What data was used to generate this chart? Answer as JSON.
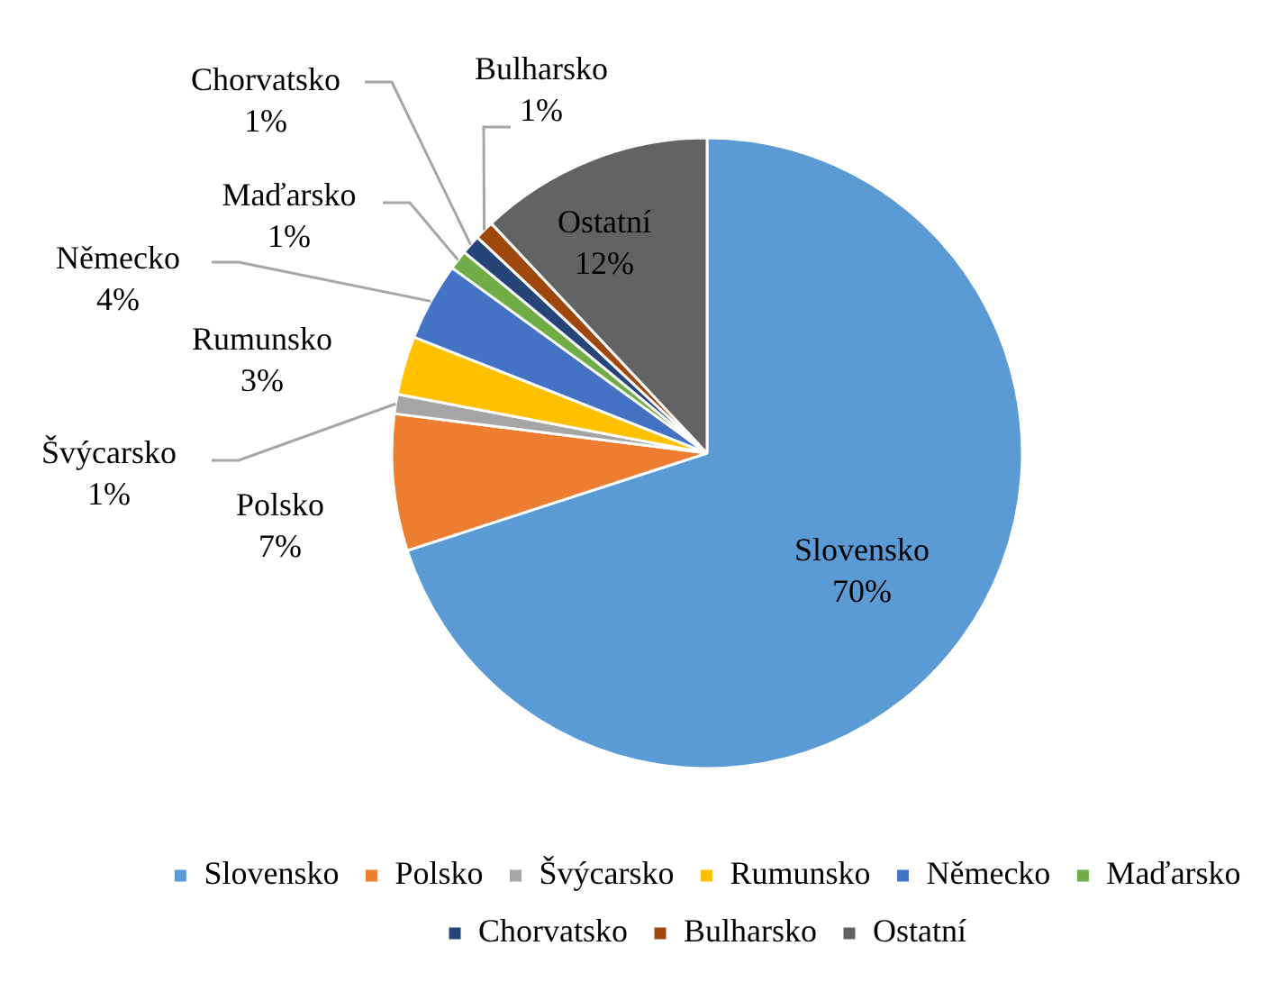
{
  "chart_data": {
    "type": "pie",
    "categories": [
      "Slovensko",
      "Polsko",
      "Švýcarsko",
      "Rumunsko",
      "Německo",
      "Maďarsko",
      "Chorvatsko",
      "Bulharsko",
      "Ostatní"
    ],
    "values": [
      70,
      7,
      1,
      3,
      4,
      1,
      1,
      1,
      12
    ],
    "value_labels": [
      "70%",
      "7%",
      "1%",
      "3%",
      "4%",
      "1%",
      "1%",
      "1%",
      "12%"
    ],
    "colors": [
      "#5b9bd5",
      "#ed7d31",
      "#a5a5a5",
      "#ffc000",
      "#4472c4",
      "#70ad47",
      "#264478",
      "#9e480e",
      "#636363"
    ],
    "legend": "bottom"
  }
}
